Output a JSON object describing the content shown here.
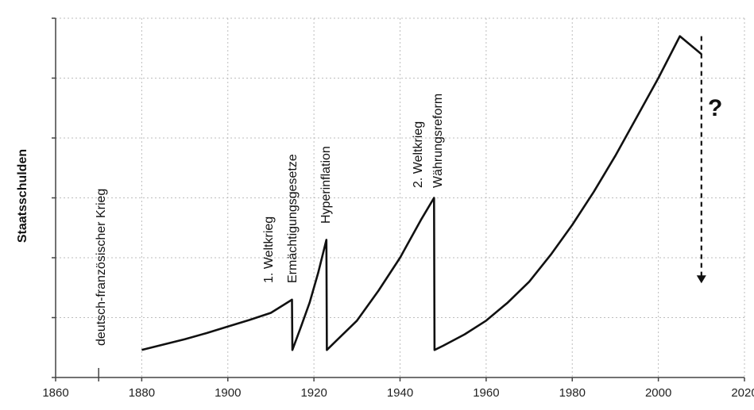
{
  "chart_data": {
    "type": "line",
    "title": "",
    "xlabel": "",
    "ylabel": "Staatsschulden",
    "xlim": [
      1860,
      2020
    ],
    "ylim": [
      0,
      6
    ],
    "grid": true,
    "x_ticks": [
      1860,
      1880,
      1900,
      1920,
      1940,
      1960,
      1980,
      2000,
      2020
    ],
    "x_tick_labels": [
      "1860",
      "1880",
      "1900",
      "1920",
      "1940",
      "1960",
      "1980",
      "2000",
      "2020"
    ],
    "y_ticks": [
      0,
      1,
      2,
      3,
      4,
      5,
      6
    ],
    "y_tick_labels": [],
    "series": [
      {
        "x": [
          1880,
          1885,
          1890,
          1895,
          1900,
          1905,
          1910,
          1914.9,
          1915,
          1917,
          1919,
          1921,
          1922.9,
          1923,
          1925,
          1930,
          1935,
          1940,
          1945,
          1947.9,
          1948,
          1950,
          1955,
          1960,
          1965,
          1970,
          1975,
          1980,
          1985,
          1990,
          1995,
          2000,
          2005,
          2010
        ],
        "y": [
          0.46,
          0.55,
          0.64,
          0.74,
          0.85,
          0.96,
          1.08,
          1.3,
          0.46,
          0.85,
          1.25,
          1.75,
          2.3,
          0.46,
          0.6,
          0.95,
          1.45,
          2.0,
          2.65,
          3.0,
          0.46,
          0.53,
          0.72,
          0.95,
          1.25,
          1.6,
          2.05,
          2.55,
          3.1,
          3.7,
          4.35,
          5.0,
          5.7,
          5.4
        ]
      }
    ],
    "annotations": [
      {
        "text": "deutsch-französischer Krieg",
        "x": 1870,
        "marker": true
      },
      {
        "text": "1. Weltkrieg",
        "x": 1915
      },
      {
        "text": "Ermächtigungsgesetze",
        "x": 1915
      },
      {
        "text": "Hyperinflation",
        "x": 1923
      },
      {
        "text": "2. Weltkrieg",
        "x": 1948
      },
      {
        "text": "Währungsreform",
        "x": 1948
      },
      {
        "text": "?",
        "x": 2010
      }
    ],
    "arrow": {
      "x": 2010,
      "y_from": 5.7,
      "y_to": 1.6,
      "style": "dashed"
    }
  }
}
